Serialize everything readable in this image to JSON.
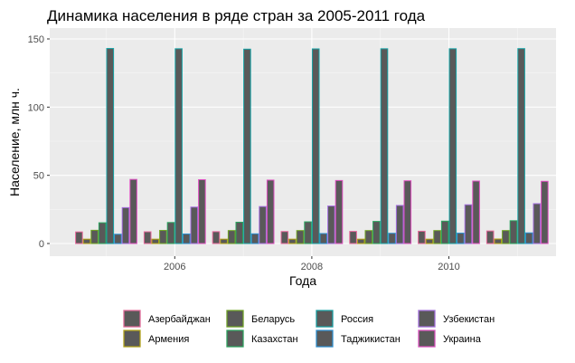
{
  "chart_data": {
    "type": "bar",
    "title": "Динамика населения в ряде стран за 2005-2011 года",
    "xlabel": "Года",
    "ylabel": "Население, млн ч.",
    "ylim": [
      0,
      150
    ],
    "x_ticks": [
      "2006",
      "2008",
      "2010"
    ],
    "y_ticks": [
      "0",
      "50",
      "100",
      "150"
    ],
    "categories": [
      "2005",
      "2006",
      "2007",
      "2008",
      "2009",
      "2010",
      "2011"
    ],
    "grid": true,
    "legend_position": "bottom",
    "bar_fill": "#595959",
    "series": [
      {
        "name": "Азербайджан",
        "color": "#e7679a",
        "values": [
          8.5,
          8.6,
          8.7,
          8.8,
          8.9,
          9.0,
          9.2
        ]
      },
      {
        "name": "Армения",
        "color": "#b5a514",
        "values": [
          3.2,
          3.2,
          3.2,
          3.2,
          3.2,
          3.2,
          3.3
        ]
      },
      {
        "name": "Беларусь",
        "color": "#6fa421",
        "values": [
          9.7,
          9.6,
          9.5,
          9.5,
          9.5,
          9.5,
          9.5
        ]
      },
      {
        "name": "Казахстан",
        "color": "#2aa65f",
        "values": [
          15.2,
          15.4,
          15.6,
          15.9,
          16.2,
          16.4,
          16.7
        ]
      },
      {
        "name": "Россия",
        "color": "#16a3a6",
        "values": [
          143,
          142.8,
          142.5,
          142.7,
          142.8,
          142.8,
          142.9
        ]
      },
      {
        "name": "Таджикистан",
        "color": "#2c91d4",
        "values": [
          6.8,
          7.0,
          7.1,
          7.3,
          7.5,
          7.6,
          7.8
        ]
      },
      {
        "name": "Узбекистан",
        "color": "#a36de0",
        "values": [
          26.3,
          26.7,
          27.1,
          27.5,
          27.9,
          28.4,
          29.2
        ]
      },
      {
        "name": "Украина",
        "color": "#e04fc3",
        "values": [
          47.0,
          46.8,
          46.5,
          46.2,
          46.0,
          45.8,
          45.6
        ]
      }
    ]
  }
}
